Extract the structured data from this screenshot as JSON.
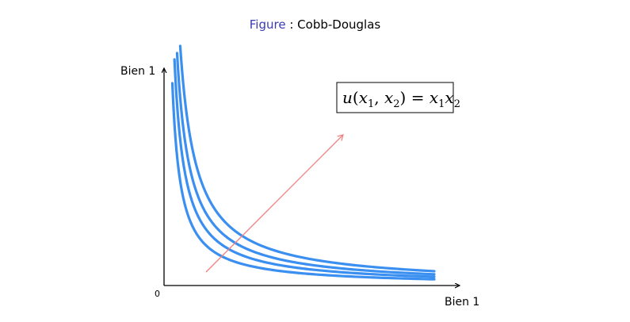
{
  "figure": {
    "label": "Figure",
    "separator": " : ",
    "title": "Cobb-Douglas"
  },
  "axes": {
    "y_label": "Bien 1",
    "x_label": "Bien 1",
    "origin_label": "0"
  },
  "formula": {
    "u": "u",
    "x": "x",
    "sub1": "1",
    "sub2": "2",
    "equals": "="
  },
  "colors": {
    "curve": "#3a8ff0",
    "direction": "#f08080",
    "axis": "#000000"
  },
  "indifference_levels": [
    1,
    1.4,
    1.8,
    2.3
  ]
}
